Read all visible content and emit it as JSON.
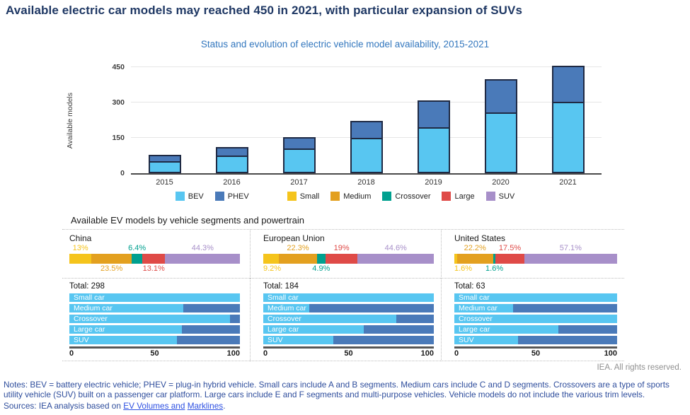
{
  "page": {
    "title": "Available electric car models may reached 450 in 2021, with particular expansion of SUVs",
    "rights": "IEA. All rights reserved.",
    "notes": "Notes: BEV = battery electric vehicle; PHEV = plug-in hybrid vehicle. Small cars include A and B segments. Medium cars include C and D segments. Crossovers are a type of sports utility vehicle (SUV) built on a passenger car platform. Large cars include E and F segments and multi-purpose vehicles. Vehicle models do not include the various trim levels.",
    "sources_prefix": "Sources: IEA analysis based on ",
    "sources_link1": "EV Volumes and",
    "sources_link2": "Marklines",
    "sources_suffix": "."
  },
  "colors": {
    "bev": "#58c6f1",
    "phev": "#4a7ab9",
    "small": "#f5c41c",
    "medium": "#e3a01f",
    "crossover": "#00a08f",
    "large": "#df4a47",
    "suv": "#a78fc9",
    "title_navy": "#1f3864",
    "subtitle_blue": "#3377be"
  },
  "legend_groups": [
    [
      {
        "label": "BEV",
        "color_key": "bev"
      },
      {
        "label": "PHEV",
        "color_key": "phev"
      }
    ],
    [
      {
        "label": "Small",
        "color_key": "small"
      },
      {
        "label": "Medium",
        "color_key": "medium"
      },
      {
        "label": "Crossover",
        "color_key": "crossover"
      },
      {
        "label": "Large",
        "color_key": "large"
      },
      {
        "label": "SUV",
        "color_key": "suv"
      }
    ]
  ],
  "chart_data": [
    {
      "type": "bar",
      "stacked": true,
      "title": "Status and evolution of electric vehicle model availability, 2015-2021",
      "xlabel": "",
      "ylabel": "Available models",
      "ylim": [
        0,
        450
      ],
      "yticks": [
        0,
        150,
        300,
        450
      ],
      "grid": true,
      "legend_position": "bottom",
      "categories": [
        "2015",
        "2016",
        "2017",
        "2018",
        "2019",
        "2020",
        "2021"
      ],
      "series": [
        {
          "name": "BEV",
          "color_key": "bev",
          "values": [
            45,
            69,
            97,
            142,
            186,
            248,
            292
          ]
        },
        {
          "name": "PHEV",
          "color_key": "phev",
          "values": [
            33,
            41,
            55,
            77,
            119,
            146,
            158
          ]
        }
      ]
    },
    {
      "type": "bar",
      "orientation": "horizontal",
      "stacked": true,
      "units": "percent",
      "title": "Available EV models by vehicle segments and powertrain",
      "total_prefix": "Total: ",
      "x_axis_ticks": [
        "0",
        "50",
        "100"
      ],
      "regions": [
        {
          "name": "China",
          "total": "298",
          "segment_shares": [
            {
              "segment": "Small",
              "color_key": "small",
              "pct": 13,
              "label": "13%",
              "label_row": "top"
            },
            {
              "segment": "Medium",
              "color_key": "medium",
              "pct": 23.5,
              "label": "23.5%",
              "label_row": "bottom"
            },
            {
              "segment": "Crossover",
              "color_key": "crossover",
              "pct": 6.4,
              "label": "6.4%",
              "label_row": "top"
            },
            {
              "segment": "Large",
              "color_key": "large",
              "pct": 13.1,
              "label": "13.1%",
              "label_row": "bottom"
            },
            {
              "segment": "SUV",
              "color_key": "suv",
              "pct": 44.3,
              "label": "44.3%",
              "label_row": "top"
            }
          ],
          "powertrain_split": [
            {
              "label": "Small car",
              "bev_pct": 100,
              "phev_pct": 0
            },
            {
              "label": "Medium car",
              "bev_pct": 67,
              "phev_pct": 33
            },
            {
              "label": "Crossover",
              "bev_pct": 94,
              "phev_pct": 6
            },
            {
              "label": "Large car",
              "bev_pct": 66,
              "phev_pct": 34
            },
            {
              "label": "SUV",
              "bev_pct": 63,
              "phev_pct": 37
            }
          ]
        },
        {
          "name": "European Union",
          "total": "184",
          "segment_shares": [
            {
              "segment": "Small",
              "color_key": "small",
              "pct": 9.2,
              "label": "9.2%",
              "label_row": "bottom"
            },
            {
              "segment": "Medium",
              "color_key": "medium",
              "pct": 22.3,
              "label": "22.3%",
              "label_row": "top"
            },
            {
              "segment": "Crossover",
              "color_key": "crossover",
              "pct": 4.9,
              "label": "4.9%",
              "label_row": "bottom"
            },
            {
              "segment": "Large",
              "color_key": "large",
              "pct": 19,
              "label": "19%",
              "label_row": "top"
            },
            {
              "segment": "SUV",
              "color_key": "suv",
              "pct": 44.6,
              "label": "44.6%",
              "label_row": "top"
            }
          ],
          "powertrain_split": [
            {
              "label": "Small car",
              "bev_pct": 100,
              "phev_pct": 0
            },
            {
              "label": "Medium car",
              "bev_pct": 27,
              "phev_pct": 73
            },
            {
              "label": "Crossover",
              "bev_pct": 78,
              "phev_pct": 22
            },
            {
              "label": "Large car",
              "bev_pct": 59,
              "phev_pct": 41
            },
            {
              "label": "SUV",
              "bev_pct": 41,
              "phev_pct": 59
            }
          ]
        },
        {
          "name": "United States",
          "total": "63",
          "segment_shares": [
            {
              "segment": "Small",
              "color_key": "small",
              "pct": 1.6,
              "label": "1.6%",
              "label_row": "bottom"
            },
            {
              "segment": "Medium",
              "color_key": "medium",
              "pct": 22.2,
              "label": "22.2%",
              "label_row": "top"
            },
            {
              "segment": "Crossover",
              "color_key": "crossover",
              "pct": 1.6,
              "label": "1.6%",
              "label_row": "bottom"
            },
            {
              "segment": "Large",
              "color_key": "large",
              "pct": 17.5,
              "label": "17.5%",
              "label_row": "top"
            },
            {
              "segment": "SUV",
              "color_key": "suv",
              "pct": 57.1,
              "label": "57.1%",
              "label_row": "top"
            }
          ],
          "powertrain_split": [
            {
              "label": "Small car",
              "bev_pct": 100,
              "phev_pct": 0
            },
            {
              "label": "Medium car",
              "bev_pct": 36,
              "phev_pct": 64
            },
            {
              "label": "Crossover",
              "bev_pct": 100,
              "phev_pct": 0
            },
            {
              "label": "Large car",
              "bev_pct": 64,
              "phev_pct": 36
            },
            {
              "label": "SUV",
              "bev_pct": 39,
              "phev_pct": 61
            }
          ]
        }
      ]
    }
  ]
}
